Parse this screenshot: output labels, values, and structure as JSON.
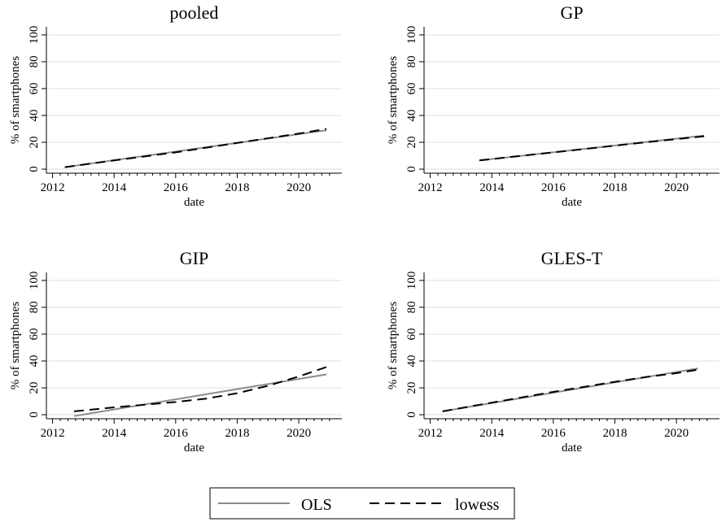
{
  "chart_data": [
    {
      "type": "line",
      "title": "pooled",
      "xlabel": "date",
      "ylabel": "% of smartphones",
      "xlim": [
        2011.8,
        2021.4
      ],
      "ylim": [
        -3,
        106
      ],
      "xticks": [
        "2012",
        "2014",
        "2016",
        "2018",
        "2020"
      ],
      "yticks": [
        "0",
        "20",
        "40",
        "60",
        "80",
        "100"
      ],
      "grid": true,
      "series": [
        {
          "name": "OLS",
          "style": "solid",
          "x": [
            2012.4,
            2020.9
          ],
          "y": [
            1.5,
            29.0
          ]
        },
        {
          "name": "lowess",
          "style": "dashed",
          "x": [
            2012.4,
            2014,
            2016,
            2018,
            2020,
            2020.9
          ],
          "y": [
            1.5,
            6.5,
            12.5,
            19.5,
            26.5,
            30.0
          ]
        }
      ]
    },
    {
      "type": "line",
      "title": "GP",
      "xlabel": "date",
      "ylabel": "% of smartphones",
      "xlim": [
        2011.8,
        2021.4
      ],
      "ylim": [
        -3,
        106
      ],
      "xticks": [
        "2012",
        "2014",
        "2016",
        "2018",
        "2020"
      ],
      "yticks": [
        "0",
        "20",
        "40",
        "60",
        "80",
        "100"
      ],
      "grid": true,
      "series": [
        {
          "name": "OLS",
          "style": "solid",
          "x": [
            2013.6,
            2020.9
          ],
          "y": [
            6.5,
            25.0
          ]
        },
        {
          "name": "lowess",
          "style": "dashed",
          "x": [
            2013.6,
            2015,
            2017,
            2019,
            2020.9
          ],
          "y": [
            6.5,
            10.0,
            15.0,
            20.0,
            24.5
          ]
        }
      ]
    },
    {
      "type": "line",
      "title": "GIP",
      "xlabel": "date",
      "ylabel": "% of smartphones",
      "xlim": [
        2011.8,
        2021.4
      ],
      "ylim": [
        -3,
        106
      ],
      "xticks": [
        "2012",
        "2014",
        "2016",
        "2018",
        "2020"
      ],
      "yticks": [
        "0",
        "20",
        "40",
        "60",
        "80",
        "100"
      ],
      "grid": true,
      "series": [
        {
          "name": "OLS",
          "style": "solid",
          "x": [
            2012.7,
            2020.9
          ],
          "y": [
            -1.0,
            30.0
          ]
        },
        {
          "name": "lowess",
          "style": "dashed",
          "x": [
            2012.7,
            2014,
            2015,
            2016,
            2017,
            2018,
            2019,
            2020,
            2020.9
          ],
          "y": [
            2.5,
            5.5,
            7.5,
            9.5,
            12.0,
            16.0,
            21.5,
            28.5,
            35.5
          ]
        }
      ]
    },
    {
      "type": "line",
      "title": "GLES-T",
      "xlabel": "date",
      "ylabel": "% of smartphones",
      "xlim": [
        2011.8,
        2021.4
      ],
      "ylim": [
        -3,
        106
      ],
      "xticks": [
        "2012",
        "2014",
        "2016",
        "2018",
        "2020"
      ],
      "yticks": [
        "0",
        "20",
        "40",
        "60",
        "80",
        "100"
      ],
      "grid": true,
      "series": [
        {
          "name": "OLS",
          "style": "solid",
          "x": [
            2012.4,
            2020.7
          ],
          "y": [
            2.5,
            34.5
          ]
        },
        {
          "name": "lowess",
          "style": "dashed",
          "x": [
            2012.4,
            2014,
            2016,
            2018,
            2019,
            2020,
            2020.7
          ],
          "y": [
            2.5,
            9.0,
            17.0,
            24.5,
            28.0,
            31.0,
            33.5
          ]
        }
      ]
    }
  ],
  "legend": {
    "placement": "bottom-center",
    "items": [
      {
        "label": "OLS",
        "color": "#8c8c8c",
        "style": "solid"
      },
      {
        "label": "lowess",
        "color": "#000000",
        "style": "dashed"
      }
    ]
  },
  "colors": {
    "ols": "#8c8c8c",
    "lowess": "#000000",
    "grid": "#e6e6e6"
  }
}
